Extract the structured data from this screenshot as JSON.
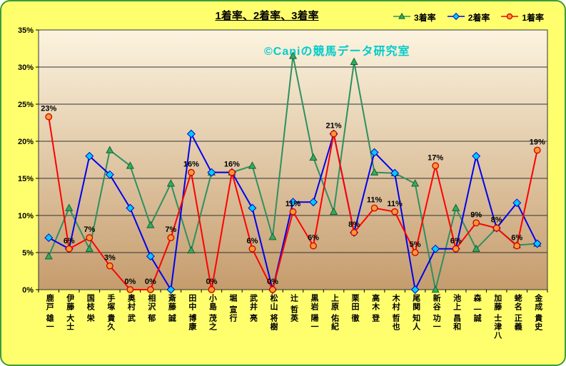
{
  "title": "1着率、2着率、3着率",
  "watermark": "©Caniの競馬データ研究室",
  "colors": {
    "outer_bg": "#FFFF6E",
    "border": "#3C9A3C",
    "plot_top": "#FCF4E0",
    "plot_bottom": "#C59C6D",
    "grid": "#333333",
    "watermark": "#00CCCC"
  },
  "chart_data": {
    "type": "line",
    "title": "1着率、2着率、3着率",
    "xlabel": "",
    "ylabel": "",
    "ylim": [
      0,
      35
    ],
    "ytick_step": 5,
    "yticks": [
      "0%",
      "5%",
      "10%",
      "15%",
      "20%",
      "25%",
      "30%",
      "35%"
    ],
    "grid": true,
    "legend_position": "top-right",
    "categories": [
      "鹿戸 雄一",
      "伊藤 大士",
      "国枝 栄",
      "手塚 貴久",
      "奥村 武",
      "相沢 郁",
      "斎藤 誠",
      "田中 博康",
      "小島 茂之",
      "堀 宣行",
      "武井 亮",
      "松山 将樹",
      "辻 哲英",
      "黒岩 陽一",
      "上原 佑紀",
      "栗田 徹",
      "高木 登",
      "木村 哲也",
      "尾関 知人",
      "新谷 功一",
      "池上 昌和",
      "森 一誠",
      "加藤 士津八",
      "蛯名 正義",
      "金成 貴史"
    ],
    "series": [
      {
        "name": "3着率",
        "marker": "triangle",
        "line_color": "#2E9060",
        "marker_fill": "#2FAF5A",
        "marker_stroke": "#1A5E38",
        "values": [
          4.5,
          11,
          5.5,
          18.8,
          16.7,
          8.7,
          14.3,
          5.3,
          15.8,
          15.8,
          16.7,
          7.1,
          31.5,
          17.8,
          10.5,
          30.7,
          15.8,
          15.7,
          14.3,
          0,
          11,
          5.5,
          8.3,
          6,
          6.2
        ]
      },
      {
        "name": "2着率",
        "marker": "diamond",
        "line_color": "#0000EE",
        "marker_fill": "#00CCFF",
        "marker_stroke": "#0000CC",
        "values": [
          7,
          5.5,
          18,
          15.5,
          11,
          4.5,
          0,
          21,
          15.8,
          15.8,
          11,
          0,
          11.8,
          11.8,
          21,
          7.7,
          18.5,
          15.7,
          0,
          5.5,
          5.5,
          18,
          8.3,
          11.7,
          6.2
        ]
      },
      {
        "name": "1着率",
        "marker": "circle",
        "line_color": "#FF0000",
        "marker_fill": "#FF9933",
        "marker_stroke": "#CC0000",
        "values": [
          23.3,
          5.5,
          7,
          3.2,
          0,
          0,
          7,
          15.8,
          0,
          15.8,
          5.5,
          0,
          10.5,
          5.9,
          21,
          7.7,
          11,
          10.5,
          5,
          16.7,
          5.5,
          9,
          8.3,
          5.9,
          18.8
        ],
        "data_labels": [
          "23%",
          "6%",
          "7%",
          "3%",
          "0%",
          "0%",
          "7%",
          "16%",
          "0%",
          "16%",
          "6%",
          "0%",
          "11%",
          "6%",
          "21%",
          "8%",
          "11%",
          "11%",
          "5%",
          "17%",
          "6%",
          "9%",
          "8%",
          "6%",
          "19%"
        ]
      }
    ]
  }
}
